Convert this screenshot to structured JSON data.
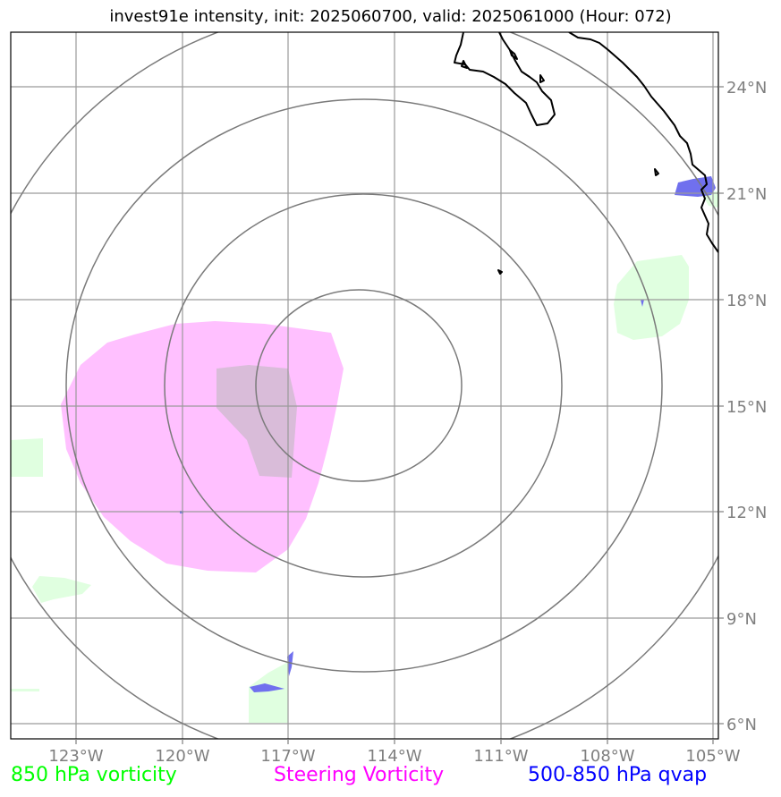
{
  "title": "invest91e intensity, init: 2025060700, valid: 2025061000 (Hour: 072)",
  "lon_ticks": [
    "123°W",
    "120°W",
    "117°W",
    "114°W",
    "111°W",
    "108°W",
    "105°W"
  ],
  "lat_ticks": [
    "24°N",
    "21°N",
    "18°N",
    "15°N",
    "12°N",
    "9°N",
    "6°N"
  ],
  "legend": {
    "vort850": {
      "label": "850 hPa vorticity",
      "color": "#00ff00"
    },
    "steering": {
      "label": "Steering Vorticity",
      "color": "#ff00ff"
    },
    "qvap": {
      "label": "500-850 hPa qvap",
      "color": "#0000ff"
    }
  },
  "colors": {
    "grid": "#9a9a9a",
    "range_rings": "#7a7a7a",
    "coastline": "#000000",
    "vort850_fill": "#e0ffe0",
    "steering_fill": "#ffc0ff",
    "qvap_fill": "#7070ee",
    "overlap_fill": "#d9bcd9"
  }
}
